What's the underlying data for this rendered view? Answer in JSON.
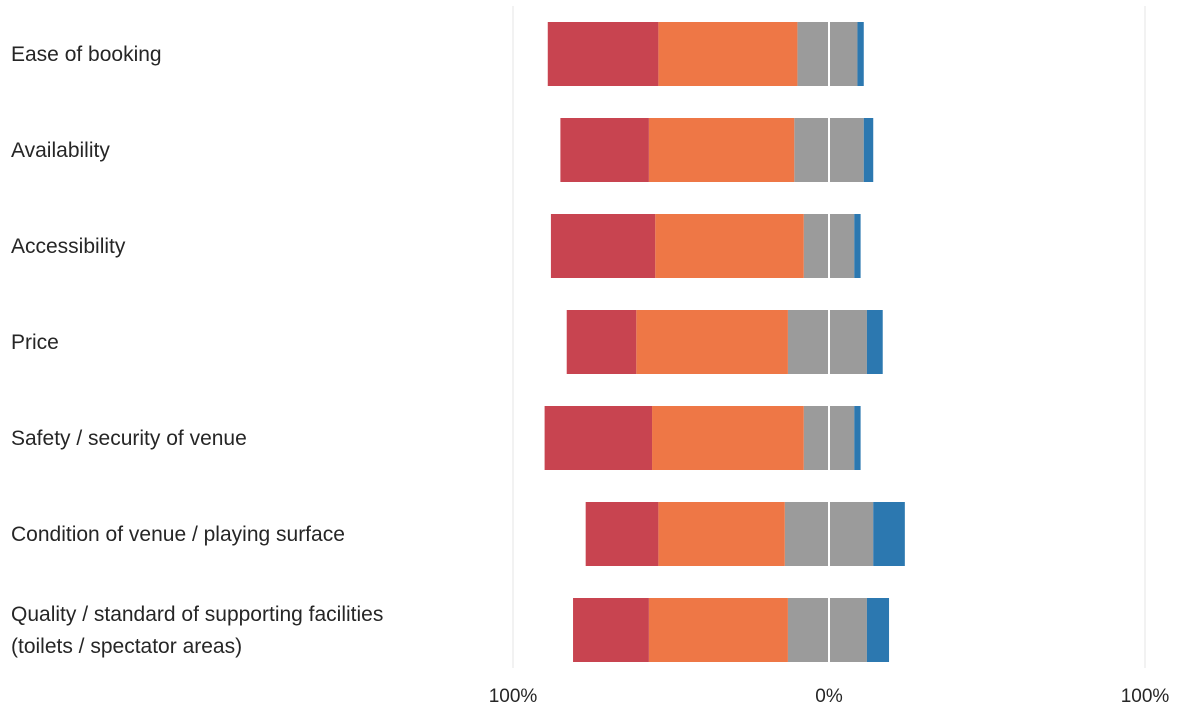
{
  "chart_data": {
    "type": "bar",
    "orientation": "horizontal",
    "stacked": "diverging",
    "categories": [
      "Ease of booking",
      "Availability",
      "Accessibility",
      "Price",
      "Safety / security of venue",
      "Condition of venue / playing surface",
      "Quality / standard of supporting facilities (toilets / spectator areas)"
    ],
    "category_lines": [
      [
        "Ease of booking"
      ],
      [
        "Availability"
      ],
      [
        "Accessibility"
      ],
      [
        "Price"
      ],
      [
        "Safety / security of venue"
      ],
      [
        "Condition of venue / playing surface"
      ],
      [
        "Quality / standard of supporting facilities",
        "(toilets / spectator areas)"
      ]
    ],
    "series": [
      {
        "side": "negative",
        "color": "#c84450",
        "values": [
          35,
          28,
          33,
          22,
          34,
          23,
          24
        ]
      },
      {
        "side": "negative",
        "color": "#ee7746",
        "values": [
          44,
          46,
          47,
          48,
          48,
          40,
          44
        ]
      },
      {
        "side": "negative",
        "color": "#9b9b9b",
        "values": [
          10,
          11,
          8,
          13,
          8,
          14,
          13
        ]
      },
      {
        "side": "positive",
        "color": "#9b9b9b",
        "values": [
          9,
          11,
          8,
          12,
          8,
          14,
          12
        ]
      },
      {
        "side": "positive",
        "color": "#2c78b0",
        "values": [
          2,
          3,
          2,
          5,
          2,
          10,
          7
        ]
      }
    ],
    "xlim": [
      -100,
      100
    ],
    "x_tick_labels": [
      {
        "value": -100,
        "label": "100%"
      },
      {
        "value": 0,
        "label": "0%"
      },
      {
        "value": 100,
        "label": "100%"
      }
    ],
    "grid": false,
    "center_line_color": "#ffffff",
    "reference_line_color": "#e6e6e6"
  }
}
